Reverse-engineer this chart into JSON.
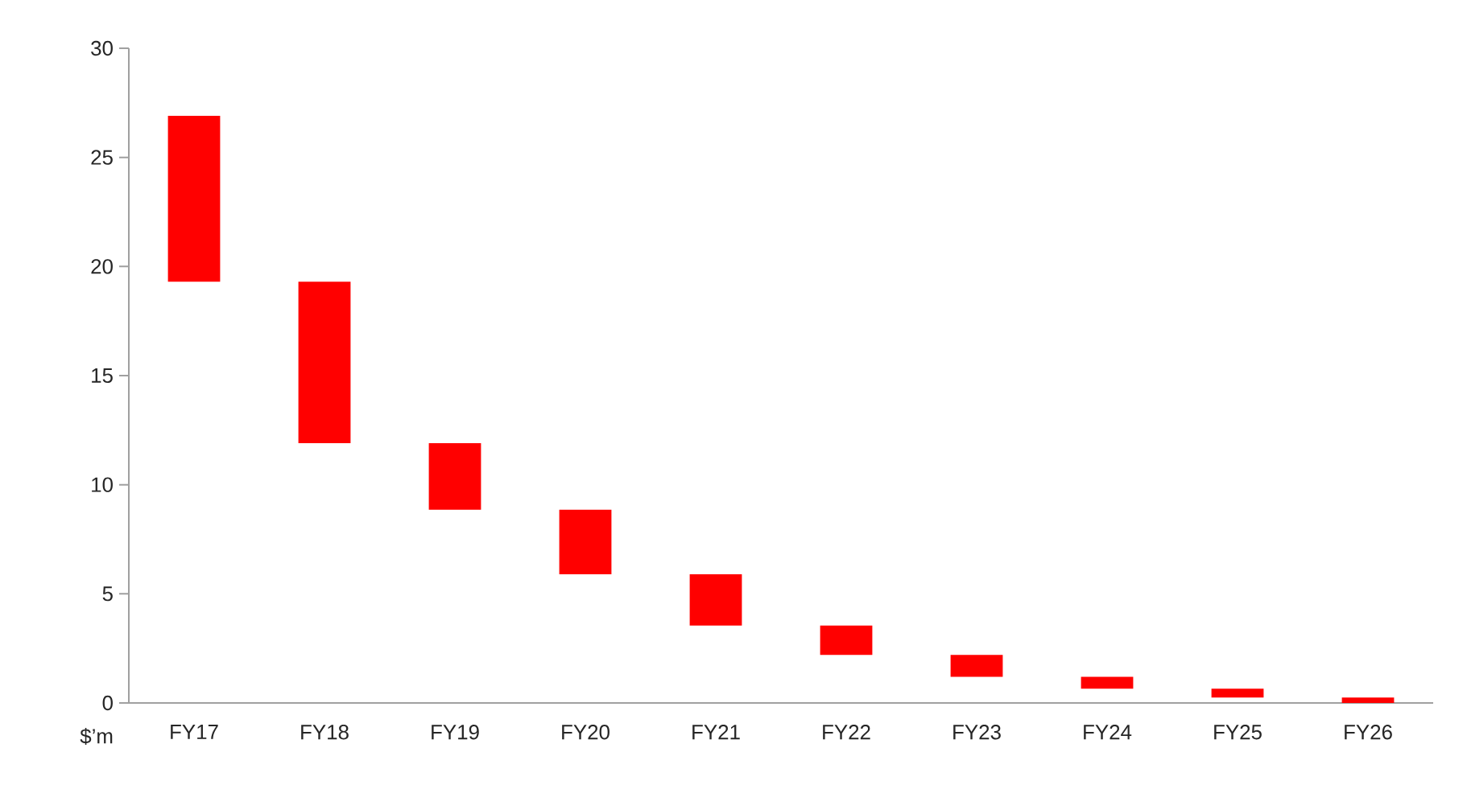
{
  "chart_data": {
    "type": "bar",
    "ylabel": "$’m",
    "categories": [
      "FY17",
      "FY18",
      "FY19",
      "FY20",
      "FY21",
      "FY22",
      "FY23",
      "FY24",
      "FY25",
      "FY26"
    ],
    "base": [
      19.3,
      11.9,
      8.85,
      5.9,
      3.55,
      2.2,
      1.2,
      0.65,
      0.25,
      0
    ],
    "values": [
      7.6,
      7.4,
      3.05,
      2.95,
      2.35,
      1.35,
      1.0,
      0.55,
      0.4,
      0.25
    ],
    "color": "#ff0000",
    "ylim": [
      0,
      30
    ],
    "yticks": [
      0,
      5,
      10,
      15,
      20,
      25,
      30
    ],
    "grid": false
  }
}
